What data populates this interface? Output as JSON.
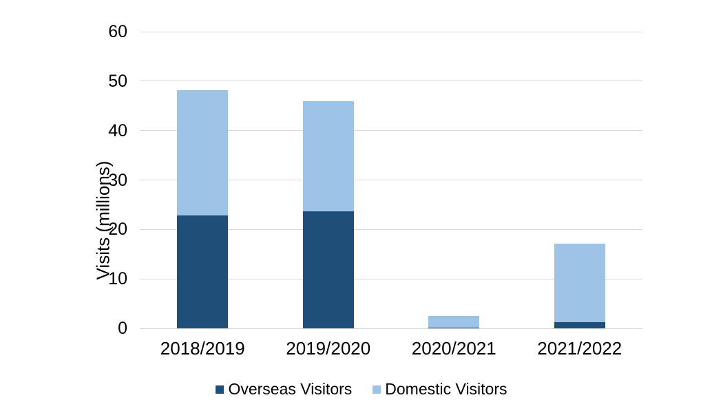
{
  "page": {
    "background_color": "#ffffff",
    "text_color": "#000000"
  },
  "chart_data": {
    "type": "bar",
    "stacked": true,
    "title": "",
    "xlabel": "",
    "ylabel": "Visits (millions)",
    "ylim": [
      0,
      60
    ],
    "yticks": [
      0,
      10,
      20,
      30,
      40,
      50,
      60
    ],
    "grid": true,
    "gridline_color": "#D9D9D9",
    "legend_position": "bottom-center",
    "categories": [
      "2018/2019",
      "2019/2020",
      "2020/2021",
      "2021/2022"
    ],
    "series": [
      {
        "name": "Overseas Visitors",
        "color": "#1F4E79",
        "values": [
          22.8,
          23.6,
          0.1,
          1.3
        ]
      },
      {
        "name": "Domestic Visitors",
        "color": "#9DC3E6",
        "values": [
          25.4,
          22.4,
          2.4,
          15.8
        ]
      }
    ],
    "totals": [
      48.2,
      46.0,
      2.5,
      17.1
    ]
  }
}
